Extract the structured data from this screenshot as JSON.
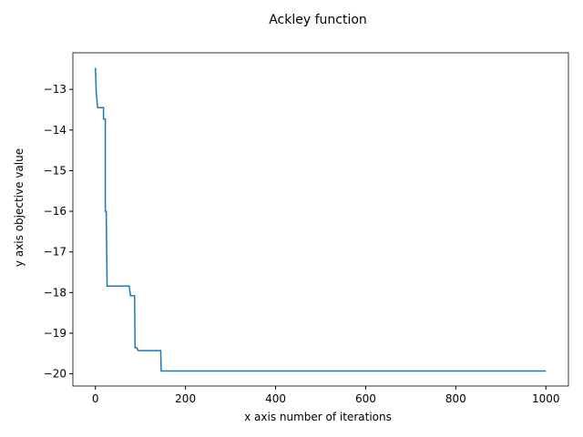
{
  "chart_data": {
    "type": "line",
    "title": "Ackley function",
    "x_label": "x axis number of iterations",
    "y_label": "y axis objective value",
    "series": [
      {
        "color": "#1f77b4",
        "x": [
          0,
          2,
          5,
          18,
          18,
          22,
          22,
          24,
          26,
          75,
          78,
          87,
          88,
          92,
          95,
          145,
          146,
          1000
        ],
        "values": [
          -12.47,
          -13.1,
          -13.45,
          -13.45,
          -13.73,
          -13.73,
          -16.0,
          -16.0,
          -17.84,
          -17.84,
          -18.08,
          -18.08,
          -19.36,
          -19.36,
          -19.43,
          -19.43,
          -19.93,
          -19.93
        ]
      }
    ],
    "xlim": [
      -50,
      1050
    ],
    "ylim": [
      -20.3,
      -12.1
    ],
    "xticks": [
      0,
      200,
      400,
      600,
      800,
      1000
    ],
    "yticks": [
      {
        "value": -13,
        "label": "−13"
      },
      {
        "value": -14,
        "label": "−14"
      },
      {
        "value": -15,
        "label": "−15"
      },
      {
        "value": -16,
        "label": "−16"
      },
      {
        "value": -17,
        "label": "−17"
      },
      {
        "value": -18,
        "label": "−18"
      },
      {
        "value": -19,
        "label": "−19"
      },
      {
        "value": -20,
        "label": "−20"
      }
    ]
  }
}
